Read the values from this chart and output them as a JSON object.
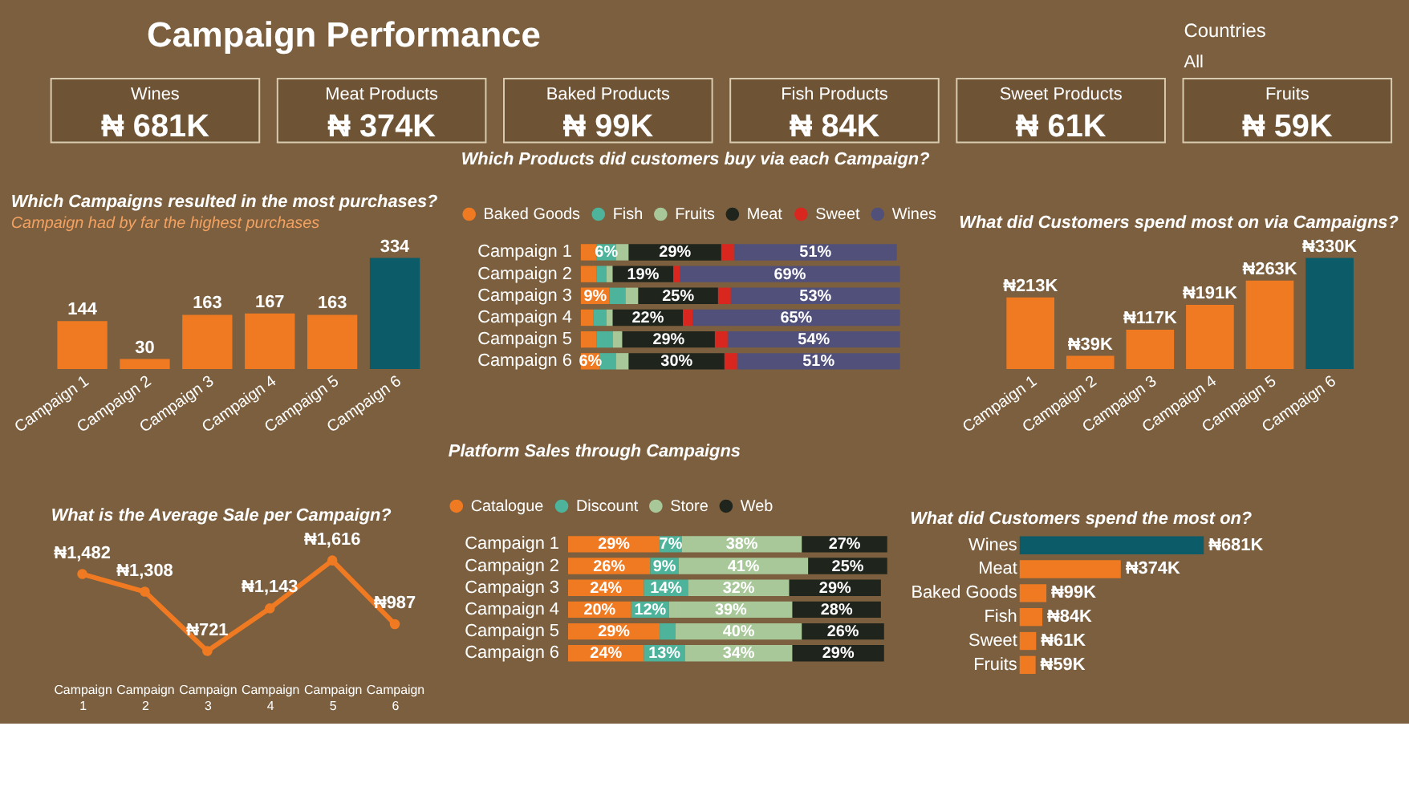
{
  "chart_data": [
    {
      "type": "other",
      "title": "Campaign Performance",
      "annotations": [
        "Countries",
        "All"
      ]
    },
    {
      "type": "other",
      "categories": [
        "Wines",
        "Meat Products",
        "Baked Products",
        "Fish Products",
        "Sweet Products",
        "Fruits"
      ],
      "value_labels": [
        "₦ 681K",
        "₦ 374K",
        "₦ 99K",
        "₦ 84K",
        "₦ 61K",
        "₦ 59K"
      ]
    },
    {
      "type": "bar",
      "title": "Which Campaigns resulted in the most purchases?",
      "subtitle": "Campaign had by far the highest purchases",
      "categories": [
        "Campaign 1",
        "Campaign 2",
        "Campaign 3",
        "Campaign 4",
        "Campaign 5",
        "Campaign 6"
      ],
      "values": [
        144,
        30,
        163,
        167,
        163,
        334
      ],
      "colors": [
        "#f07a22",
        "#f07a22",
        "#f07a22",
        "#f07a22",
        "#f07a22",
        "#0b5b69"
      ],
      "data_labels": true
    },
    {
      "type": "bar",
      "orientation": "horizontal",
      "stacked": true,
      "title": "Which Products did customers buy via each Campaign?",
      "legend": "top left",
      "categories": [
        "Campaign 1",
        "Campaign 2",
        "Campaign 3",
        "Campaign 4",
        "Campaign 5",
        "Campaign 6"
      ],
      "series": [
        {
          "name": "Baked Goods",
          "color": "#f07a22",
          "values": [
            5,
            5,
            9,
            4,
            5,
            6
          ],
          "value_labels": [
            null,
            null,
            "9%",
            null,
            null,
            "6%"
          ]
        },
        {
          "name": "Fish",
          "color": "#4db39a",
          "values": [
            6,
            3,
            5,
            4,
            5,
            5
          ],
          "value_labels": [
            "6%",
            null,
            null,
            null,
            null,
            null
          ]
        },
        {
          "name": "Fruits",
          "color": "#a8c89a",
          "values": [
            4,
            2,
            4,
            2,
            3,
            4
          ],
          "value_labels": [
            null,
            null,
            null,
            null,
            null,
            null
          ]
        },
        {
          "name": "Meat",
          "color": "#1f241d",
          "values": [
            29,
            19,
            25,
            22,
            29,
            30
          ],
          "value_labels": [
            "29%",
            "19%",
            "25%",
            "22%",
            "29%",
            "30%"
          ]
        },
        {
          "name": "Sweet",
          "color": "#d9271f",
          "values": [
            4,
            2,
            4,
            3,
            4,
            4
          ],
          "value_labels": [
            null,
            null,
            null,
            null,
            null,
            null
          ]
        },
        {
          "name": "Wines",
          "color": "#50507a",
          "values": [
            51,
            69,
            53,
            65,
            54,
            51
          ],
          "value_labels": [
            "51%",
            "69%",
            "53%",
            "65%",
            "54%",
            "51%"
          ]
        }
      ]
    },
    {
      "type": "bar",
      "title": "What did Customers spend most on via Campaigns?",
      "categories": [
        "Campaign 1",
        "Campaign 2",
        "Campaign 3",
        "Campaign 4",
        "Campaign 5",
        "Campaign 6"
      ],
      "values": [
        213,
        39,
        117,
        191,
        263,
        330
      ],
      "value_labels": [
        "₦213K",
        "₦39K",
        "₦117K",
        "₦191K",
        "₦263K",
        "₦330K"
      ],
      "colors": [
        "#f07a22",
        "#f07a22",
        "#f07a22",
        "#f07a22",
        "#f07a22",
        "#0b5b69"
      ]
    },
    {
      "type": "line",
      "title": "What is the Average Sale per Campaign?",
      "categories": [
        "Campaign 1",
        "Campaign 2",
        "Campaign 3",
        "Campaign 4",
        "Campaign 5",
        "Campaign 6"
      ],
      "series": [
        {
          "color": "#f07a22",
          "values": [
            1482,
            1308,
            721,
            1143,
            1616,
            987
          ],
          "value_labels": [
            "₦1,482",
            "₦1,308",
            "₦721",
            "₦1,143",
            "₦1,616",
            "₦987"
          ]
        }
      ],
      "marker": "circle",
      "line_style": "solid"
    },
    {
      "type": "bar",
      "orientation": "horizontal",
      "stacked": true,
      "title": "Platform Sales through Campaigns",
      "legend": "top left",
      "categories": [
        "Campaign 1",
        "Campaign 2",
        "Campaign 3",
        "Campaign 4",
        "Campaign 5",
        "Campaign 6"
      ],
      "series": [
        {
          "name": "Catalogue",
          "color": "#f07a22",
          "values": [
            29,
            26,
            24,
            20,
            29,
            24
          ],
          "value_labels": [
            "29%",
            "26%",
            "24%",
            "20%",
            "29%",
            "24%"
          ]
        },
        {
          "name": "Discount",
          "color": "#4db39a",
          "values": [
            7,
            9,
            14,
            12,
            5,
            13
          ],
          "value_labels": [
            "7%",
            "9%",
            "14%",
            "12%",
            null,
            "13%"
          ]
        },
        {
          "name": "Store",
          "color": "#a8c89a",
          "values": [
            38,
            41,
            32,
            39,
            40,
            34
          ],
          "value_labels": [
            "38%",
            "41%",
            "32%",
            "39%",
            "40%",
            "34%"
          ]
        },
        {
          "name": "Web",
          "color": "#1f241d",
          "values": [
            27,
            25,
            29,
            28,
            26,
            29
          ],
          "value_labels": [
            "27%",
            "25%",
            "29%",
            "28%",
            "26%",
            "29%"
          ]
        }
      ]
    },
    {
      "type": "bar",
      "orientation": "horizontal",
      "title": "What did Customers spend the most on?",
      "categories": [
        "Wines",
        "Meat",
        "Baked Goods",
        "Fish",
        "Sweet",
        "Fruits"
      ],
      "values": [
        681,
        374,
        99,
        84,
        61,
        59
      ],
      "value_labels": [
        "₦681K",
        "₦374K",
        "₦99K",
        "₦84K",
        "₦61K",
        "₦59K"
      ],
      "colors": [
        "#0b5b69",
        "#f07a22",
        "#f07a22",
        "#f07a22",
        "#f07a22",
        "#f07a22"
      ]
    }
  ]
}
